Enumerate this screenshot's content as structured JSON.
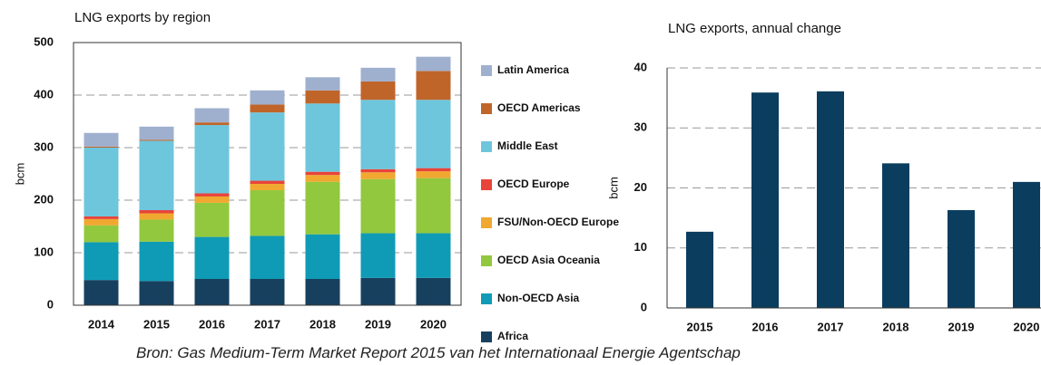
{
  "chart_data": [
    {
      "type": "bar",
      "stacked": true,
      "title": "LNG exports by region",
      "y_label": "bcm",
      "categories": [
        "2014",
        "2015",
        "2016",
        "2017",
        "2018",
        "2019",
        "2020"
      ],
      "series": [
        {
          "name": "Africa",
          "color": "#17405f",
          "values": [
            48,
            46,
            50,
            50,
            50,
            52,
            52
          ]
        },
        {
          "name": "Non-OECD Asia",
          "color": "#0f9bb5",
          "values": [
            72,
            75,
            80,
            82,
            85,
            85,
            85
          ]
        },
        {
          "name": "OECD Asia Oceania",
          "color": "#92c83e",
          "values": [
            32,
            42,
            65,
            87,
            100,
            103,
            105
          ]
        },
        {
          "name": "FSU/Non-OECD Europe",
          "color": "#f0a830",
          "values": [
            12,
            12,
            12,
            12,
            13,
            13,
            13
          ]
        },
        {
          "name": "OECD Europe",
          "color": "#e8443a",
          "values": [
            5,
            6,
            6,
            6,
            6,
            6,
            6
          ]
        },
        {
          "name": "Middle East",
          "color": "#6ec6dc",
          "values": [
            131,
            132,
            130,
            130,
            130,
            132,
            130
          ]
        },
        {
          "name": "OECD Americas",
          "color": "#c0652a",
          "values": [
            2,
            2,
            5,
            15,
            25,
            35,
            55
          ]
        },
        {
          "name": "Latin America",
          "color": "#9fb0cf",
          "values": [
            26,
            25,
            27,
            27,
            25,
            26,
            27
          ]
        }
      ],
      "ylim": [
        0,
        500
      ],
      "yticks": [
        0,
        100,
        200,
        300,
        400,
        500
      ],
      "grid": true,
      "legend": "right"
    },
    {
      "type": "bar",
      "title": "LNG exports, annual change",
      "y_label": "bcm",
      "categories": [
        "2015",
        "2016",
        "2017",
        "2018",
        "2019",
        "2020"
      ],
      "values": [
        12.7,
        35.9,
        36.1,
        24.1,
        16.3,
        21
      ],
      "color": "#0b3d5e",
      "ylim": [
        0,
        40
      ],
      "yticks": [
        0,
        10,
        20,
        30,
        40
      ],
      "grid": true
    }
  ],
  "caption": "Bron: Gas Medium-Term Market Report 2015 van het Internationaal Energie Agentschap"
}
